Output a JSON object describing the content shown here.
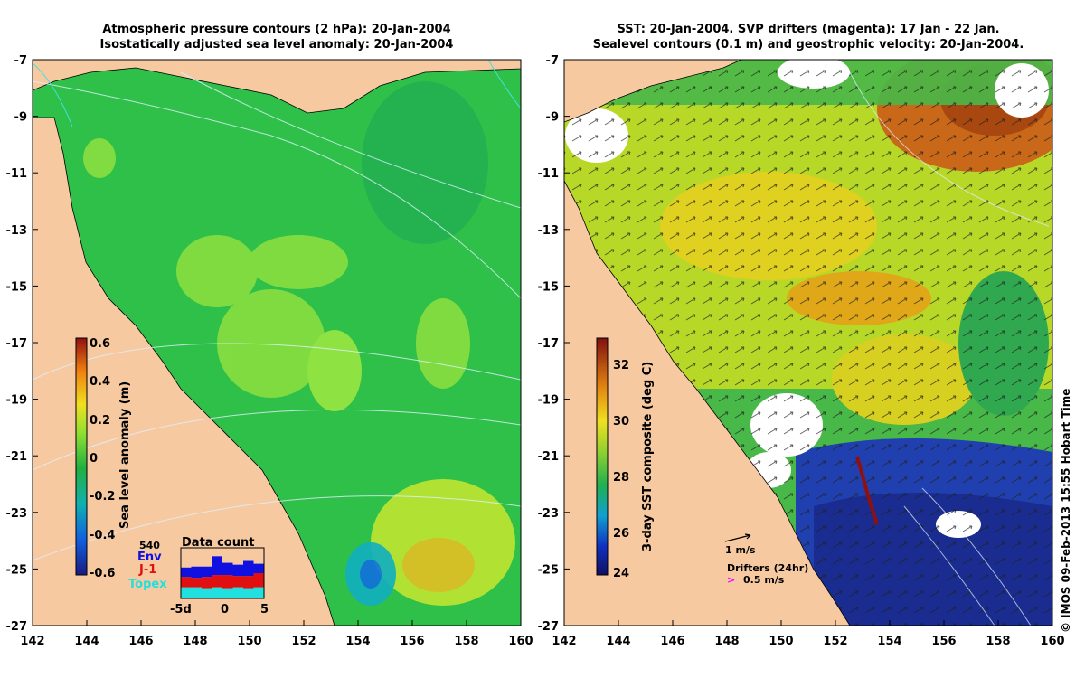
{
  "left_panel": {
    "title_line1": "Atmospheric pressure contours (2 hPa): 20-Jan-2004",
    "title_line2": "Isostatically adjusted sea level anomaly: 20-Jan-2004",
    "colorbar_label": "Sea level anomaly (m)",
    "colorbar_ticks": [
      "0.6",
      "0.4",
      "0.2",
      "0",
      "-0.2",
      "-0.4",
      "-0.6"
    ],
    "colors": {
      "land": "#f7c9a0",
      "sea_main": "#2fc04a",
      "sea_light": "#8fe040"
    }
  },
  "right_panel": {
    "title_line1": "SST: 20-Jan-2004. SVP drifters (magenta): 17 Jan - 22 Jan.",
    "title_line2": "Sealevel contours (0.1 m) and geostrophic velocity: 20-Jan-2004.",
    "colorbar_label": "3-day SST composite (deg C)",
    "colorbar_ticks": [
      "32",
      "30",
      "28",
      "26",
      "24"
    ],
    "velocity_scale_label": "1 m/s",
    "drifters_label": "Drifters (24hr)",
    "drifter_scale_label": "0.5 m/s",
    "drifter_symbol": ">",
    "colors": {
      "land": "#f7c9a0",
      "warm": "#d8d020",
      "hot": "#d06010",
      "cool": "#2030a0",
      "drifter": "#ff00ff"
    }
  },
  "axes": {
    "x_ticks": [
      "142",
      "144",
      "146",
      "148",
      "150",
      "152",
      "154",
      "156",
      "158",
      "160"
    ],
    "y_ticks": [
      "-7",
      "-9",
      "-11",
      "-13",
      "-15",
      "-17",
      "-19",
      "-21",
      "-23",
      "-25",
      "-27"
    ]
  },
  "data_count": {
    "title": "Data count",
    "max_label": "540",
    "series": [
      {
        "name": "Env",
        "color": "#1010e0",
        "values": [
          100,
          120,
          110,
          200,
          130,
          120,
          160,
          100
        ]
      },
      {
        "name": "J-1",
        "color": "#e01010",
        "values": [
          110,
          100,
          120,
          130,
          140,
          120,
          130,
          150
        ]
      },
      {
        "name": "Topex",
        "color": "#20e0e0",
        "values": [
          120,
          120,
          110,
          120,
          110,
          120,
          110,
          120
        ]
      }
    ],
    "x_ticks": [
      "-5d",
      "0",
      "5"
    ]
  },
  "credit": "© IMOS 09-Feb-2013 15:55 Hobart Time"
}
